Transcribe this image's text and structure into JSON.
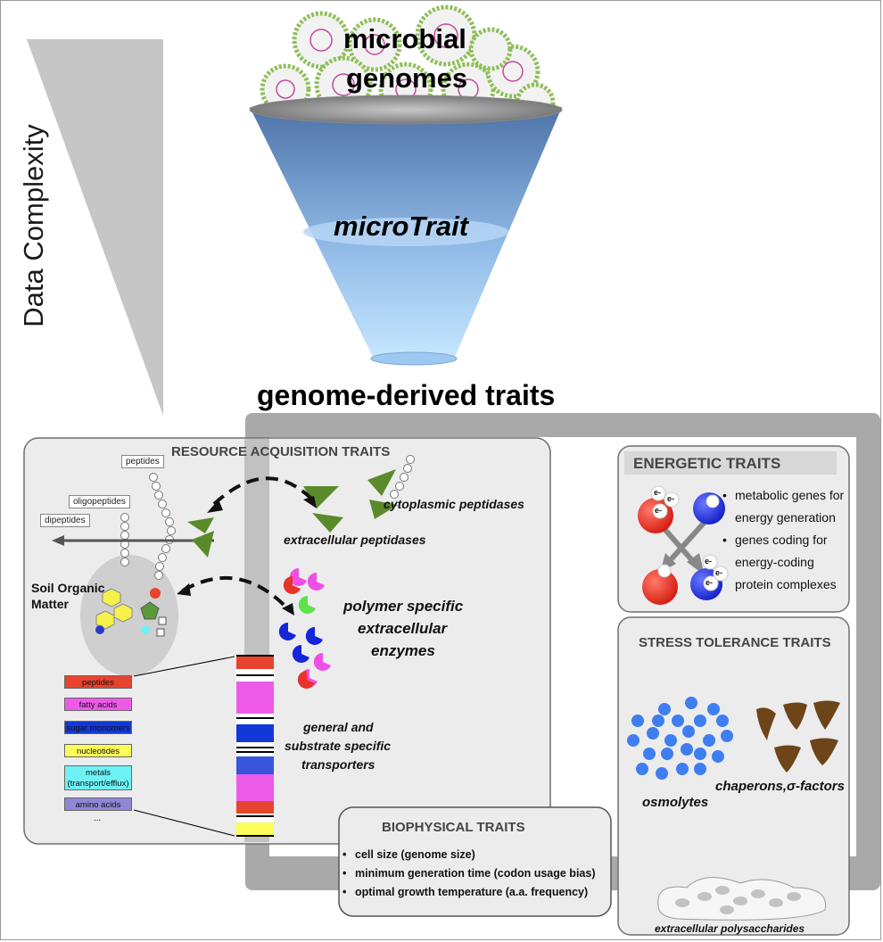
{
  "left_axis": {
    "label": "Data Complexity"
  },
  "funnel": {
    "top_label_line1": "microbial",
    "top_label_line2": "genomes",
    "middle_label": "microTrait"
  },
  "output_heading": "genome-derived traits",
  "resource_panel": {
    "title": "RESOURCE ACQUISITION TRAITS",
    "labels": {
      "peptides": "peptides",
      "oligopeptides": "oligopeptides",
      "dipeptides": "dipeptides",
      "soil_organic_matter": "Soil Organic Matter",
      "cytoplasmic_peptidases": "cytoplasmic peptidases",
      "extracellular_peptidases": "extracellular peptidases",
      "polymer_enzymes_1": "polymer specific",
      "polymer_enzymes_2": "extracellular",
      "polymer_enzymes_3": "enzymes",
      "transporters_1": "general and",
      "transporters_2": "substrate specific",
      "transporters_3": "transporters"
    },
    "substrate_categories": [
      {
        "label": "peptides",
        "color": "#e8432e"
      },
      {
        "label": "fatty acids",
        "color": "#ee5ae8"
      },
      {
        "label": "sugar monomers",
        "color": "#1438d6"
      },
      {
        "label": "nucleotides",
        "color": "#fdfd5a"
      },
      {
        "label": "metals (transport/efflux)",
        "color": "#6ef2f6"
      },
      {
        "label": "amino acids",
        "color": "#8f86d6"
      }
    ],
    "more": "..."
  },
  "energetic_panel": {
    "title": "ENERGETIC TRAITS",
    "bullets": [
      "metabolic genes for energy generation",
      "genes coding for energy-coding protein complexes"
    ],
    "electron_label": "e-"
  },
  "stress_panel": {
    "title": "STRESS TOLERANCE TRAITS",
    "osmolytes": "osmolytes",
    "chaperons": "chaperons,σ-factors",
    "eps": "extracellular polysaccharides"
  },
  "biophysical_panel": {
    "title": "BIOPHYSICAL TRAITS",
    "bullets": [
      "cell size (genome size)",
      "minimum generation time (codon usage bias)",
      "optimal growth temperature (a.a. frequency)"
    ]
  },
  "colors": {
    "funnel_top": "#4e73a8",
    "funnel_bottom": "#bfe3ff",
    "enzyme_magenta": "#ee4fe6",
    "enzyme_blue": "#1426d8",
    "enzyme_red": "#e8332a",
    "enzyme_green": "#5de34a",
    "peptidase_green": "#5a8a2a",
    "osmolyte_blue": "#3f7ef0",
    "chaperon_brown": "#6e4519",
    "frame_gray": "#a9a9a9"
  }
}
